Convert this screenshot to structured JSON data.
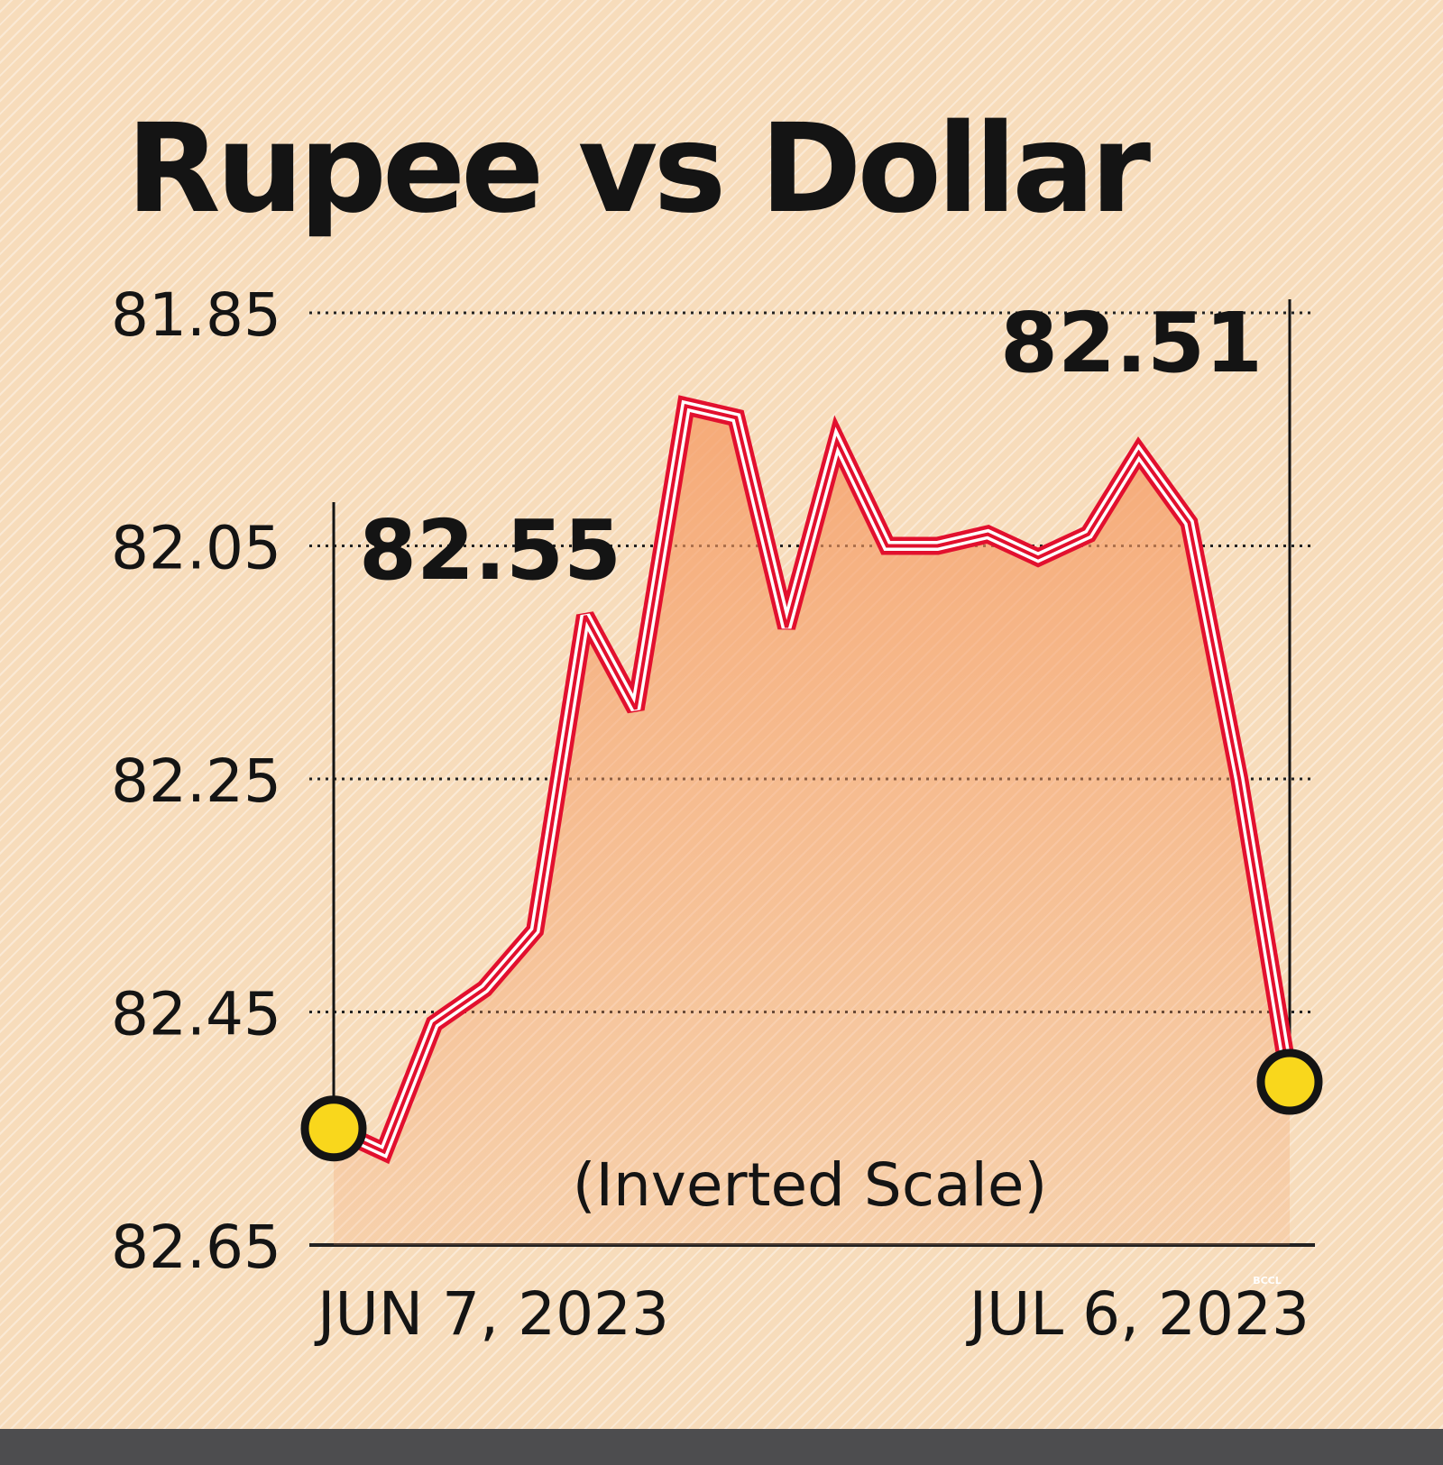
{
  "chart_data": {
    "type": "line",
    "title": "Rupee vs Dollar",
    "subtitle": "",
    "note": "(Inverted Scale)",
    "xlabel": "",
    "ylabel": "",
    "y_inverted": true,
    "ylim": [
      81.85,
      82.65
    ],
    "y_ticks": [
      "81.85",
      "82.05",
      "82.25",
      "82.45",
      "82.65"
    ],
    "x_labels": [
      "JUN 7, 2023",
      "JUL 6, 2023"
    ],
    "grid": true,
    "fill": true,
    "series": [
      {
        "values": [
          82.55,
          82.57,
          82.46,
          82.43,
          82.38,
          82.11,
          82.19,
          81.93,
          81.94,
          82.12,
          81.96,
          82.05,
          82.05,
          82.04,
          82.06,
          82.04,
          81.97,
          82.03,
          82.25,
          82.51
        ]
      }
    ],
    "annotations": [
      {
        "label": "82.55",
        "point_index": 0
      },
      {
        "label": "82.51",
        "point_index": 19
      }
    ],
    "colors": {
      "line": "#e2102e",
      "line_outline": "#ffffff",
      "area": "#f7a36f",
      "marker_fill": "#f9d71c",
      "marker_stroke": "#141414",
      "grid": "#222222",
      "text": "#141414"
    }
  },
  "footer": {
    "credit": "BCCL"
  }
}
